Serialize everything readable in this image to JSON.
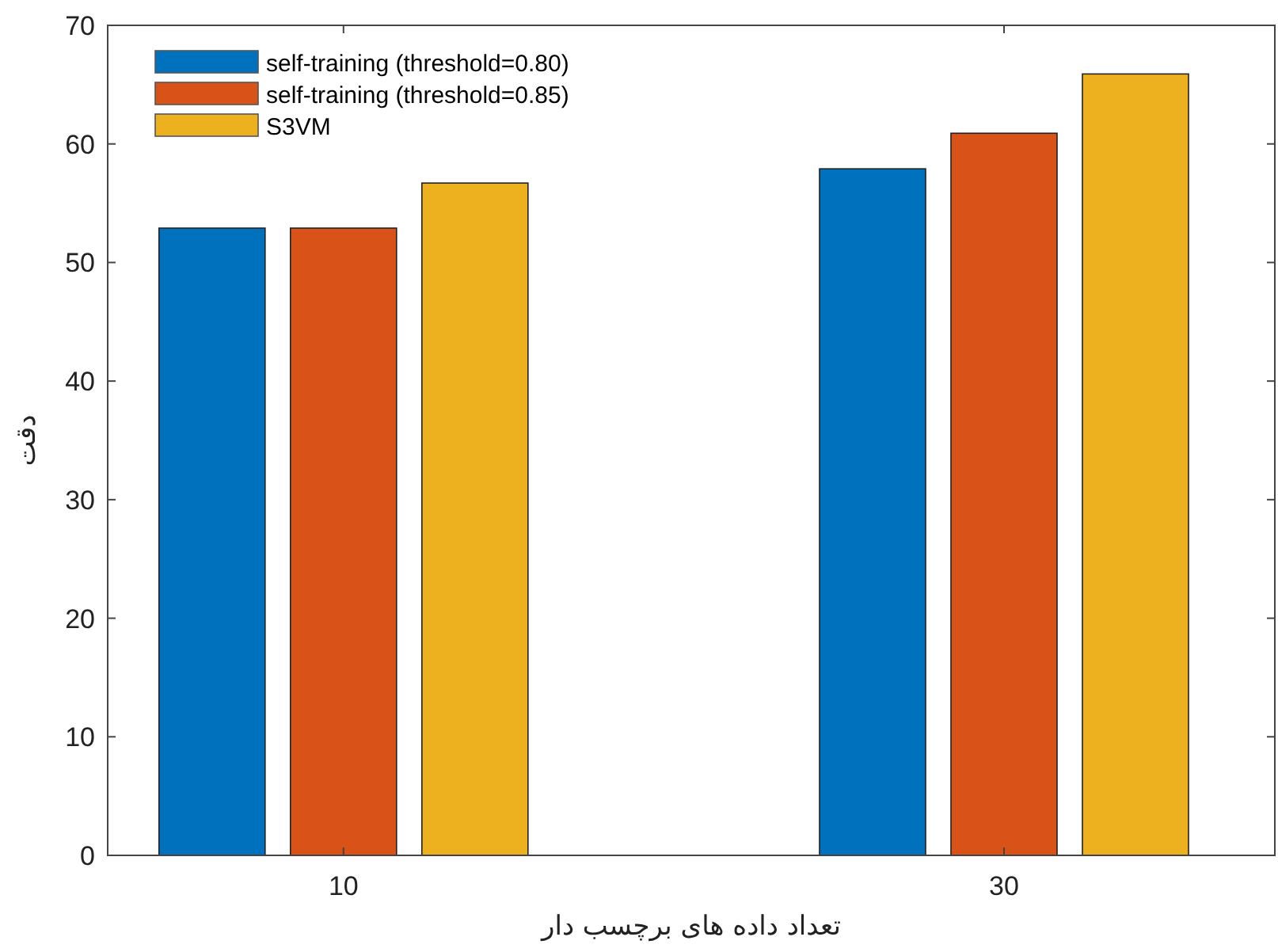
{
  "chart_data": {
    "type": "bar",
    "xlabel": "تعداد داده های برچسب دار",
    "ylabel": "دقت",
    "categories": [
      "10",
      "30"
    ],
    "series": [
      {
        "name": "self-training (threshold=0.80)",
        "color": "#0072bd",
        "values": [
          52.9,
          57.9
        ]
      },
      {
        "name": "self-training (threshold=0.85)",
        "color": "#d95319",
        "values": [
          52.9,
          60.9
        ]
      },
      {
        "name": "S3VM",
        "color": "#edb120",
        "values": [
          56.7,
          65.9
        ]
      }
    ],
    "ylim": [
      0,
      70
    ],
    "yticks": [
      0,
      10,
      20,
      30,
      40,
      50,
      60,
      70
    ],
    "grid": false,
    "legend": "top left"
  }
}
